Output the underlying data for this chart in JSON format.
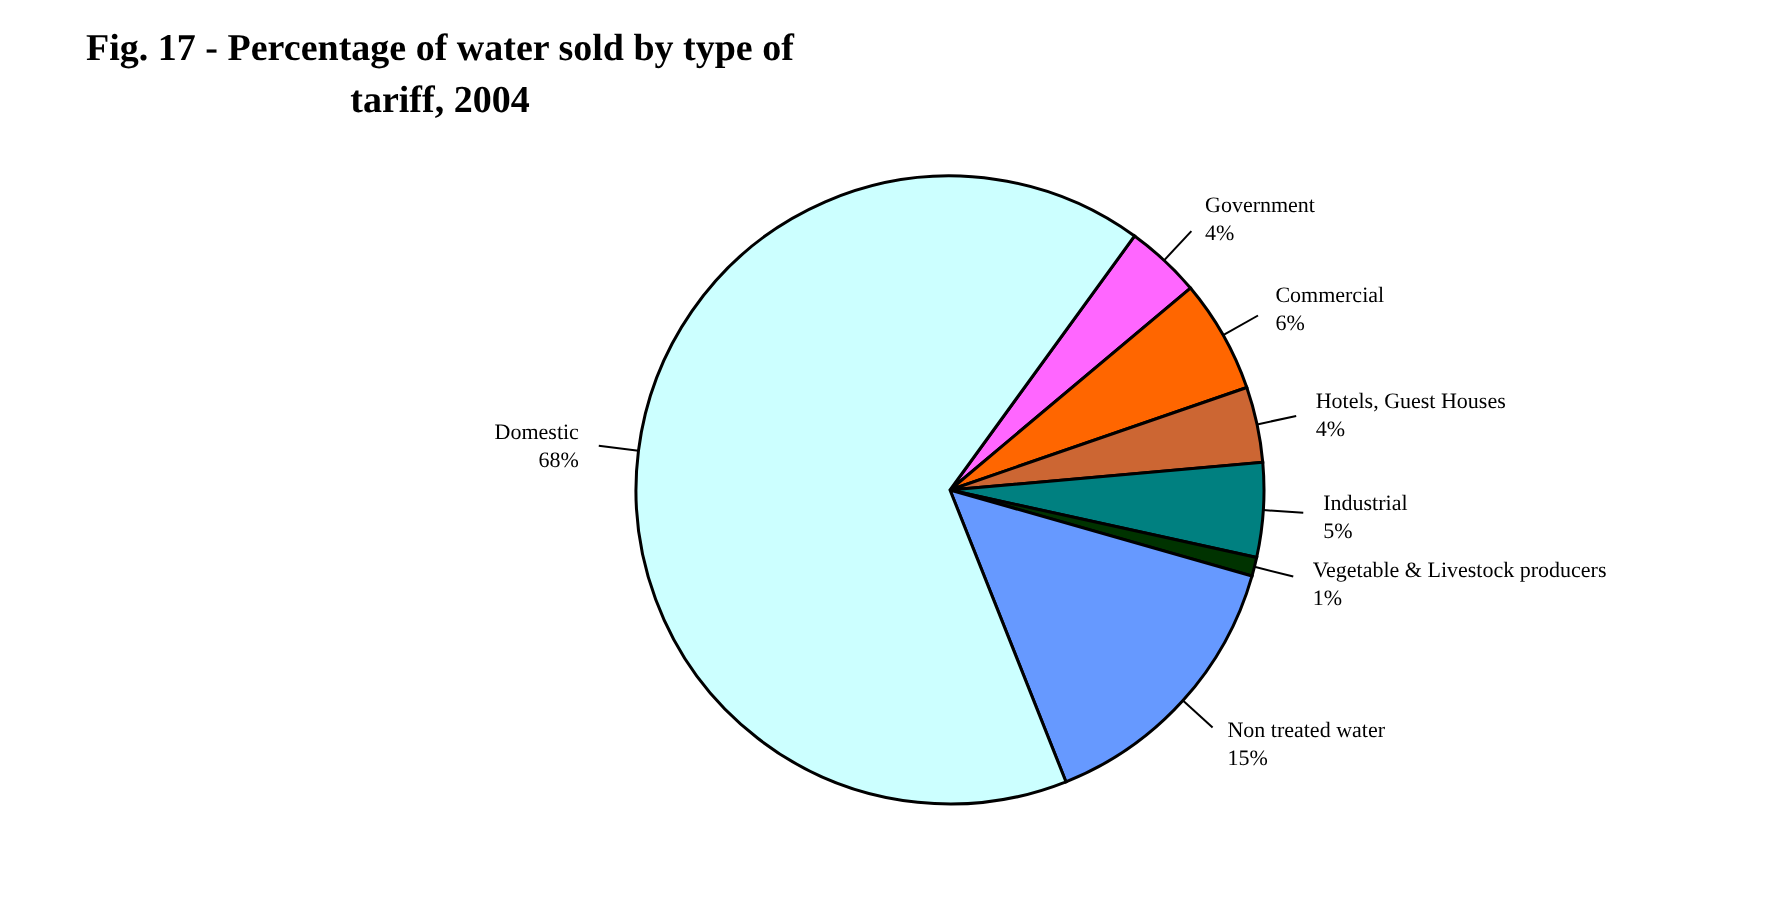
{
  "chart_data": {
    "type": "pie",
    "title": "Fig. 17 - Percentage of water sold by type of tariff, 2004",
    "categories": [
      "Government",
      "Commercial",
      "Hotels, Guest Houses",
      "Industrial",
      "Vegetable & Livestock producers",
      "Non treated  water",
      "Domestic"
    ],
    "values": [
      4,
      6,
      4,
      5,
      1,
      15,
      68
    ],
    "value_labels": [
      "4%",
      "6%",
      "4%",
      "5%",
      "1%",
      "15%",
      "68%"
    ],
    "colors": [
      "#ff66ff",
      "#ff6600",
      "#cc6633",
      "#008080",
      "#003300",
      "#6699ff",
      "#ccffff"
    ],
    "legend": false
  }
}
